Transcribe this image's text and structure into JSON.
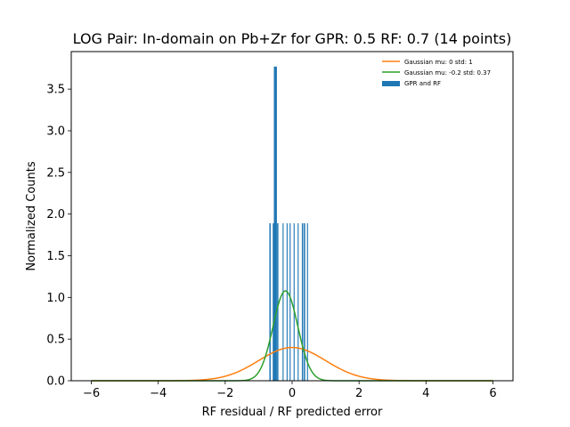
{
  "chart_data": {
    "type": "bar",
    "title": "LOG Pair: In-domain on Pb+Zr for GPR: 0.5 RF: 0.7 (14 points)",
    "xlabel": "RF residual / RF predicted error",
    "ylabel": "Normalized Counts",
    "xlim": [
      -6.6,
      6.6
    ],
    "ylim": [
      0,
      3.95
    ],
    "xticks": [
      -6,
      -4,
      -2,
      0,
      2,
      4,
      6
    ],
    "xtick_labels": [
      "−6",
      "−4",
      "−2",
      "0",
      "2",
      "4",
      "6"
    ],
    "yticks": [
      0.0,
      0.5,
      1.0,
      1.5,
      2.0,
      2.5,
      3.0,
      3.5
    ],
    "ytick_labels": [
      "0.0",
      "0.5",
      "1.0",
      "1.5",
      "2.0",
      "2.5",
      "3.0",
      "3.5"
    ],
    "grid": false,
    "legend_position": "top-right",
    "histogram": {
      "name": "GPR and RF",
      "color": "#1f77b4",
      "bins": [
        {
          "x": -0.66,
          "width": 0.04,
          "value": 1.89
        },
        {
          "x": -0.56,
          "width": 0.04,
          "value": 1.89
        },
        {
          "x": -0.5,
          "width": 0.09,
          "value": 3.77
        },
        {
          "x": -0.43,
          "width": 0.04,
          "value": 1.89
        },
        {
          "x": -0.27,
          "width": 0.03,
          "value": 1.89
        },
        {
          "x": -0.15,
          "width": 0.03,
          "value": 1.89
        },
        {
          "x": -0.06,
          "width": 0.03,
          "value": 1.89
        },
        {
          "x": 0.06,
          "width": 0.03,
          "value": 1.89
        },
        {
          "x": 0.18,
          "width": 0.03,
          "value": 1.89
        },
        {
          "x": 0.31,
          "width": 0.04,
          "value": 1.89
        },
        {
          "x": 0.37,
          "width": 0.04,
          "value": 1.89
        },
        {
          "x": 0.46,
          "width": 0.03,
          "value": 1.89
        }
      ]
    },
    "series": [
      {
        "name": "Gaussian mu: 0 std: 1",
        "color": "#ff7f0e",
        "mu": 0,
        "std": 1,
        "x_range": [
          -6,
          6
        ]
      },
      {
        "name": "Gaussian mu: -0.2 std: 0.37",
        "color": "#2ca02c",
        "mu": -0.2,
        "std": 0.37,
        "x_range": [
          -6,
          6
        ]
      }
    ]
  }
}
